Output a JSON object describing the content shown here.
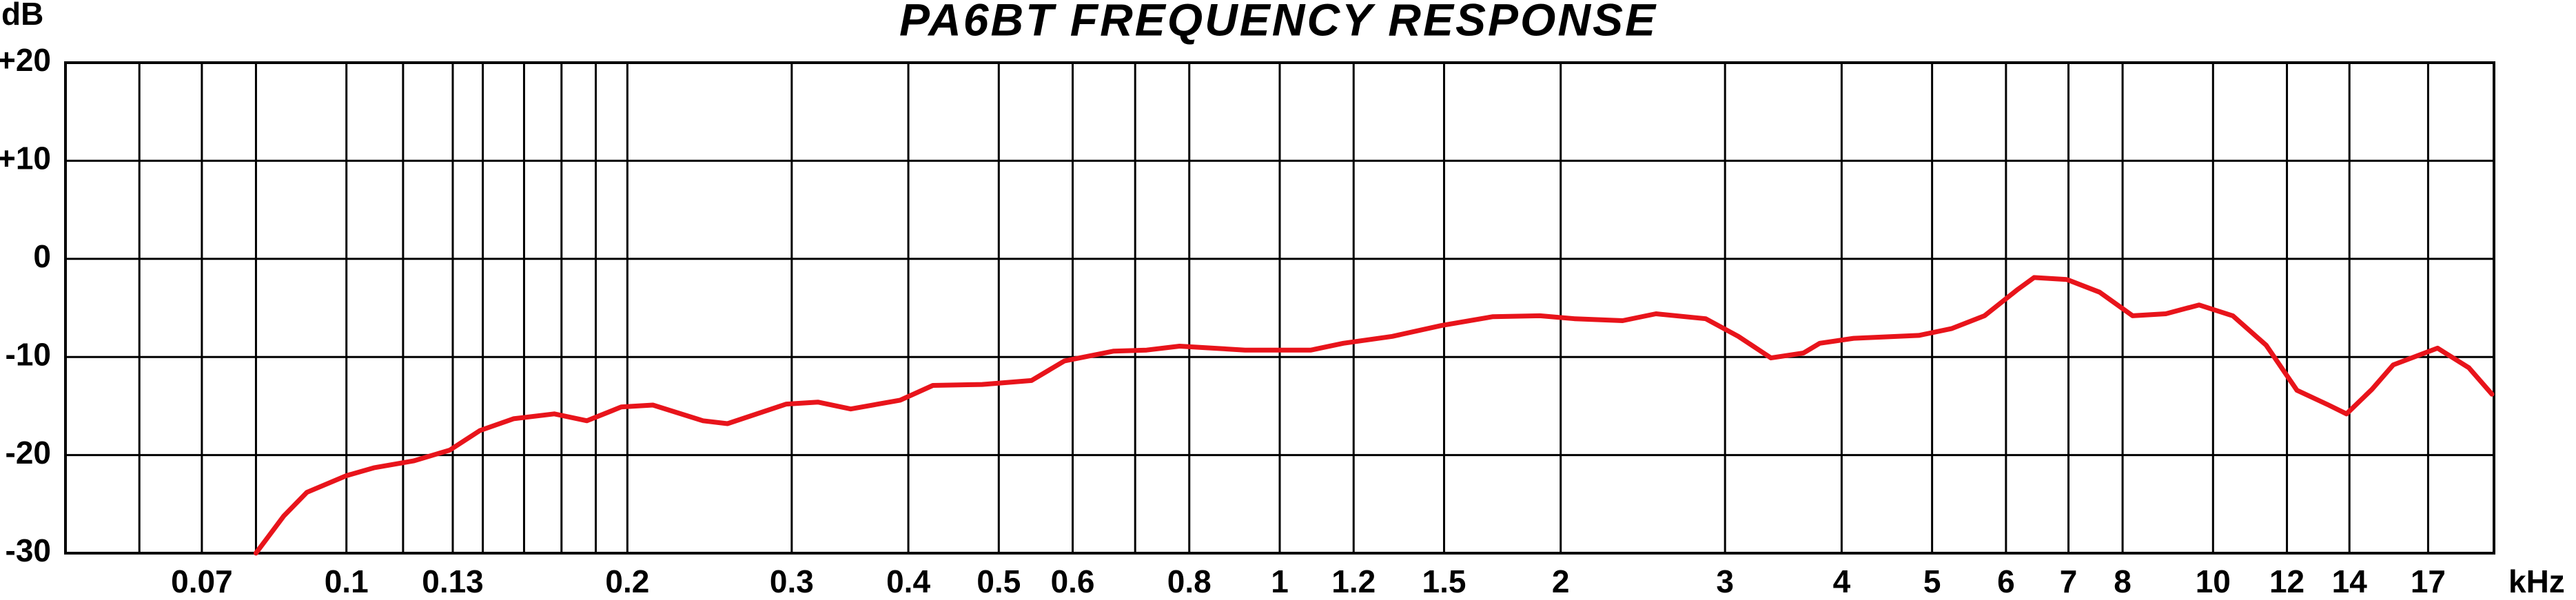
{
  "chart_data": {
    "type": "line",
    "title": "PA6BT FREQUENCY RESPONSE",
    "y_label": "dB",
    "x_label": "kHz",
    "xlog": true,
    "grid": true,
    "xlim": [
      0.05,
      20
    ],
    "ylim": [
      -30,
      20
    ],
    "yticks": [
      {
        "value": 20,
        "label": "+20"
      },
      {
        "value": 10,
        "label": "+10"
      },
      0,
      -10,
      -20,
      -30
    ],
    "xticks": [
      0.07,
      0.1,
      0.13,
      0.2,
      0.3,
      0.4,
      0.5,
      0.6,
      0.8,
      1,
      1.2,
      1.5,
      2,
      3,
      4,
      5,
      6,
      7,
      8,
      10,
      12,
      14,
      17
    ],
    "xgrid_minor": [
      0.06,
      0.08,
      0.115,
      0.14,
      0.155,
      0.17,
      0.185,
      0.7
    ],
    "x": [
      0.08,
      0.0857,
      0.0907,
      0.1,
      0.107,
      0.118,
      0.129,
      0.139,
      0.151,
      0.167,
      0.181,
      0.197,
      0.213,
      0.241,
      0.256,
      0.296,
      0.32,
      0.347,
      0.392,
      0.425,
      0.48,
      0.542,
      0.588,
      0.664,
      0.72,
      0.781,
      0.918,
      1.08,
      1.17,
      1.32,
      1.49,
      1.69,
      1.9,
      2.07,
      2.33,
      2.53,
      2.86,
      3.1,
      3.36,
      3.64,
      3.79,
      4.12,
      4.84,
      5.25,
      5.69,
      6.18,
      6.43,
      6.97,
      7.56,
      8.2,
      8.9,
      9.66,
      10.5,
      11.4,
      12.3,
      13.3,
      13.9,
      14.8,
      15.6,
      17.4,
      18.8,
      19.9
    ],
    "series": [
      {
        "name": "PA6BT",
        "color": "#e8141b",
        "values": [
          -30,
          -26.2,
          -23.8,
          -22.1,
          -21.3,
          -20.6,
          -19.5,
          -17.5,
          -16.3,
          -15.8,
          -16.5,
          -15.1,
          -14.9,
          -16.5,
          -16.8,
          -14.8,
          -14.6,
          -15.3,
          -14.4,
          -12.9,
          -12.8,
          -12.4,
          -10.4,
          -9.4,
          -9.3,
          -8.9,
          -9.3,
          -9.3,
          -8.6,
          -7.9,
          -6.8,
          -5.9,
          -5.8,
          -6.1,
          -6.3,
          -5.6,
          -6.1,
          -7.9,
          -10.1,
          -9.6,
          -8.6,
          -8.1,
          -7.8,
          -7.1,
          -5.8,
          -3.1,
          -1.9,
          -2.1,
          -3.4,
          -5.8,
          -5.6,
          -4.7,
          -5.8,
          -8.8,
          -13.4,
          -14.9,
          -15.8,
          -13.3,
          -10.8,
          -9.1,
          -11.1,
          -13.8
        ]
      }
    ]
  }
}
